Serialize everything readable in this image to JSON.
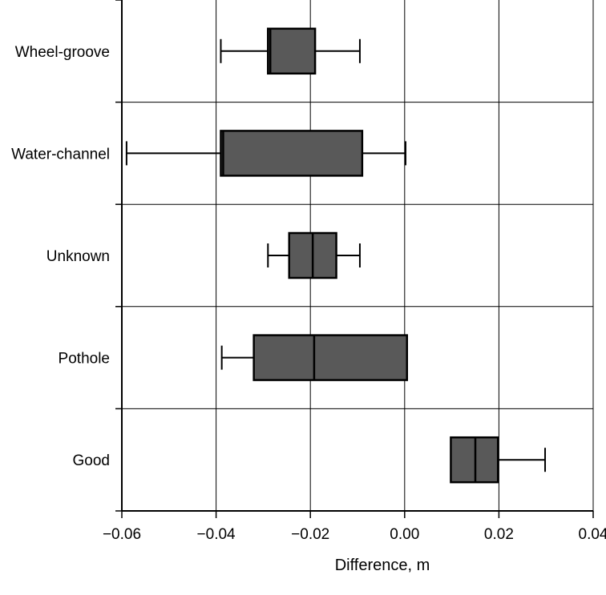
{
  "chart_data": {
    "type": "boxplot",
    "orientation": "horizontal",
    "title": "",
    "xlabel": "Difference, m",
    "ylabel": "",
    "xlim": [
      -0.06,
      0.04
    ],
    "xticks": [
      -0.06,
      -0.04,
      -0.02,
      0.0,
      0.02,
      0.04
    ],
    "xtick_labels": [
      "−0.06",
      "−0.04",
      "−0.02",
      "0.00",
      "0.02",
      "0.04"
    ],
    "grid": true,
    "box_color": "#595959",
    "categories": [
      "Wheel-groove",
      "Water-channel",
      "Unknown",
      "Pothole",
      "Good"
    ],
    "boxes": [
      {
        "category": "Wheel-groove",
        "whisker_low": -0.039,
        "q1": -0.029,
        "median": -0.0285,
        "q3": -0.019,
        "whisker_high": -0.0095
      },
      {
        "category": "Water-channel",
        "whisker_low": -0.059,
        "q1": -0.039,
        "median": -0.0385,
        "q3": -0.009,
        "whisker_high": 0.0002
      },
      {
        "category": "Unknown",
        "whisker_low": -0.029,
        "q1": -0.0245,
        "median": -0.0195,
        "q3": -0.0145,
        "whisker_high": -0.0095
      },
      {
        "category": "Pothole",
        "whisker_low": -0.0388,
        "q1": -0.032,
        "median": -0.0192,
        "q3": 0.0005,
        "whisker_high": 0.0005
      },
      {
        "category": "Good",
        "whisker_low": 0.0098,
        "q1": 0.0098,
        "median": 0.015,
        "q3": 0.0198,
        "whisker_high": 0.0298
      }
    ]
  }
}
